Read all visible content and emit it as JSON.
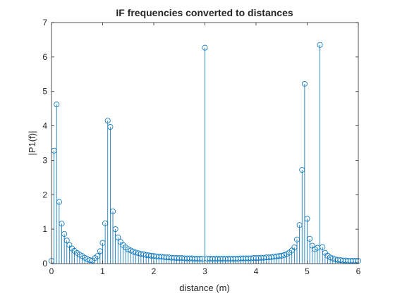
{
  "chart_data": {
    "type": "stem",
    "title": "IF frequencies converted to distances",
    "xlabel": "distance (m)",
    "ylabel": "|P1(f)|",
    "xlim": [
      0,
      6
    ],
    "ylim": [
      0,
      7
    ],
    "xticks": [
      "0",
      "1",
      "2",
      "3",
      "4",
      "5",
      "6"
    ],
    "yticks": [
      "0",
      "1",
      "2",
      "3",
      "4",
      "5",
      "6",
      "7"
    ],
    "grid": false,
    "marker": "open-circle",
    "color": "#0072BD",
    "x_step": 0.05,
    "values": [
      0.08,
      3.28,
      4.62,
      1.79,
      1.16,
      0.86,
      0.67,
      0.54,
      0.44,
      0.37,
      0.31,
      0.26,
      0.22,
      0.17,
      0.13,
      0.1,
      0.09,
      0.16,
      0.22,
      0.36,
      0.6,
      1.17,
      4.15,
      3.97,
      1.52,
      1.0,
      0.76,
      0.63,
      0.54,
      0.47,
      0.42,
      0.38,
      0.35,
      0.32,
      0.3,
      0.28,
      0.27,
      0.25,
      0.24,
      0.23,
      0.22,
      0.21,
      0.2,
      0.2,
      0.19,
      0.18,
      0.18,
      0.17,
      0.17,
      0.16,
      0.16,
      0.16,
      0.15,
      0.15,
      0.15,
      0.15,
      0.14,
      0.14,
      0.14,
      0.14,
      6.27,
      0.14,
      0.14,
      0.14,
      0.14,
      0.14,
      0.14,
      0.14,
      0.14,
      0.14,
      0.14,
      0.14,
      0.14,
      0.14,
      0.15,
      0.15,
      0.15,
      0.15,
      0.15,
      0.16,
      0.16,
      0.16,
      0.17,
      0.17,
      0.18,
      0.18,
      0.19,
      0.2,
      0.21,
      0.22,
      0.23,
      0.25,
      0.28,
      0.32,
      0.38,
      0.47,
      0.7,
      1.12,
      2.72,
      5.22,
      1.3,
      0.72,
      0.52,
      0.42,
      0.46,
      6.35,
      0.48,
      0.31,
      0.23,
      0.18,
      0.15,
      0.12,
      0.11,
      0.1,
      0.09,
      0.09,
      0.08,
      0.08,
      0.08,
      0.08,
      0.08
    ]
  }
}
